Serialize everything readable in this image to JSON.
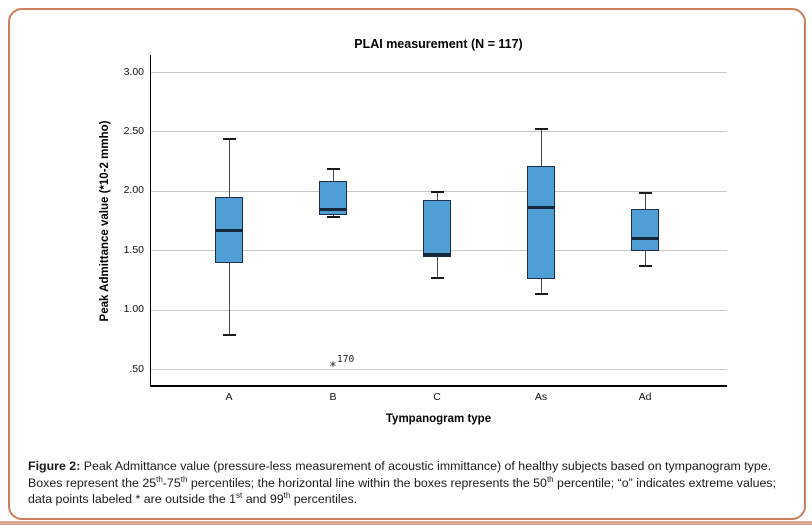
{
  "chart_data": {
    "type": "boxplot",
    "title": "PLAI measurement (N = 117)",
    "xlabel": "Tympanogram type",
    "ylabel": "Peak Admittance value (*10-2 mmho)",
    "categories": [
      "A",
      "B",
      "C",
      "As",
      "Ad"
    ],
    "yticks": [
      {
        "value": 3.0,
        "label": "3.00"
      },
      {
        "value": 2.5,
        "label": "2.50"
      },
      {
        "value": 2.0,
        "label": "2.00"
      },
      {
        "value": 1.5,
        "label": "1.50"
      },
      {
        "value": 1.0,
        "label": "1.00"
      },
      {
        "value": 0.5,
        "label": ".50"
      }
    ],
    "ylim": [
      0.36,
      3.14
    ],
    "grid": true,
    "legend": null,
    "boxes": [
      {
        "category": "A",
        "whisker_low": 0.79,
        "q1": 1.39,
        "median": 1.67,
        "q3": 1.95,
        "whisker_high": 2.44,
        "outliers": []
      },
      {
        "category": "B",
        "whisker_low": 1.78,
        "q1": 1.8,
        "median": 1.84,
        "q3": 2.08,
        "whisker_high": 2.18,
        "outliers": [
          {
            "value": 0.51,
            "label": "170",
            "marker": "*"
          }
        ]
      },
      {
        "category": "C",
        "whisker_low": 1.27,
        "q1": 1.44,
        "median": 1.46,
        "q3": 1.92,
        "whisker_high": 1.99,
        "outliers": []
      },
      {
        "category": "As",
        "whisker_low": 1.13,
        "q1": 1.26,
        "median": 1.86,
        "q3": 2.21,
        "whisker_high": 2.52,
        "outliers": []
      },
      {
        "category": "Ad",
        "whisker_low": 1.37,
        "q1": 1.49,
        "median": 1.6,
        "q3": 1.85,
        "whisker_high": 1.98,
        "outliers": []
      }
    ],
    "colors": {
      "box_fill": "#4f9fd6",
      "box_border": "#1c2f44",
      "median": "#16283a",
      "whisker": "#4a4a4a",
      "whisker_cap": "#1a1a1a",
      "gridline": "#c8c8c8",
      "axis": "#000000"
    }
  },
  "frame": {
    "border_color": "#c9805a",
    "bottom_bar_color": "#d9a794"
  },
  "caption": {
    "segments": [
      {
        "text": "Figure 2: ",
        "bold": true
      },
      {
        "text": "Peak Admittance value (pressure-less measurement of acoustic immittance) of healthy subjects based on tympanogram type. Boxes represent the 25"
      },
      {
        "text": "th",
        "sup": true
      },
      {
        "text": "-75"
      },
      {
        "text": "th",
        "sup": true
      },
      {
        "text": " percentiles; the horizontal line within the boxes represents the 50"
      },
      {
        "text": "th",
        "sup": true
      },
      {
        "text": " percentile; “o” indicates extreme values; data points labeled * are outside the 1"
      },
      {
        "text": "st",
        "sup": true
      },
      {
        "text": " and 99"
      },
      {
        "text": "th",
        "sup": true
      },
      {
        "text": " percentiles."
      }
    ]
  }
}
